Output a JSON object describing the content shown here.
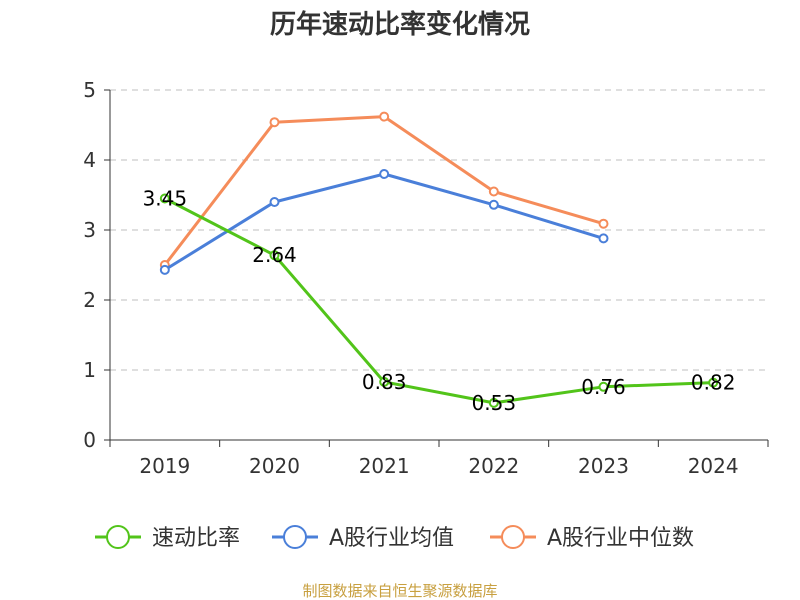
{
  "chart_data": {
    "type": "line",
    "title": "历年速动比率变化情况",
    "categories": [
      "2019",
      "2020",
      "2021",
      "2022",
      "2023",
      "2024"
    ],
    "ylim": [
      0,
      5
    ],
    "yticks": [
      "0",
      "1",
      "2",
      "3",
      "4",
      "5"
    ],
    "grid": "dashed horizontal",
    "legend_position": "bottom",
    "series": [
      {
        "name": "速动比率",
        "color": "#52c41a",
        "values": [
          3.45,
          2.64,
          0.83,
          0.53,
          0.76,
          0.82
        ],
        "labels": [
          "3.45",
          "2.64",
          "0.83",
          "0.53",
          "0.76",
          "0.82"
        ]
      },
      {
        "name": "A股行业均值",
        "color": "#4a7fd9",
        "values": [
          2.43,
          3.4,
          3.8,
          3.36,
          2.88,
          null
        ]
      },
      {
        "name": "A股行业中位数",
        "color": "#f58c5a",
        "values": [
          2.5,
          4.54,
          4.62,
          3.55,
          3.09,
          null
        ]
      }
    ]
  },
  "source_text": "制图数据来自恒生聚源数据库",
  "source_color": "#c8a040"
}
